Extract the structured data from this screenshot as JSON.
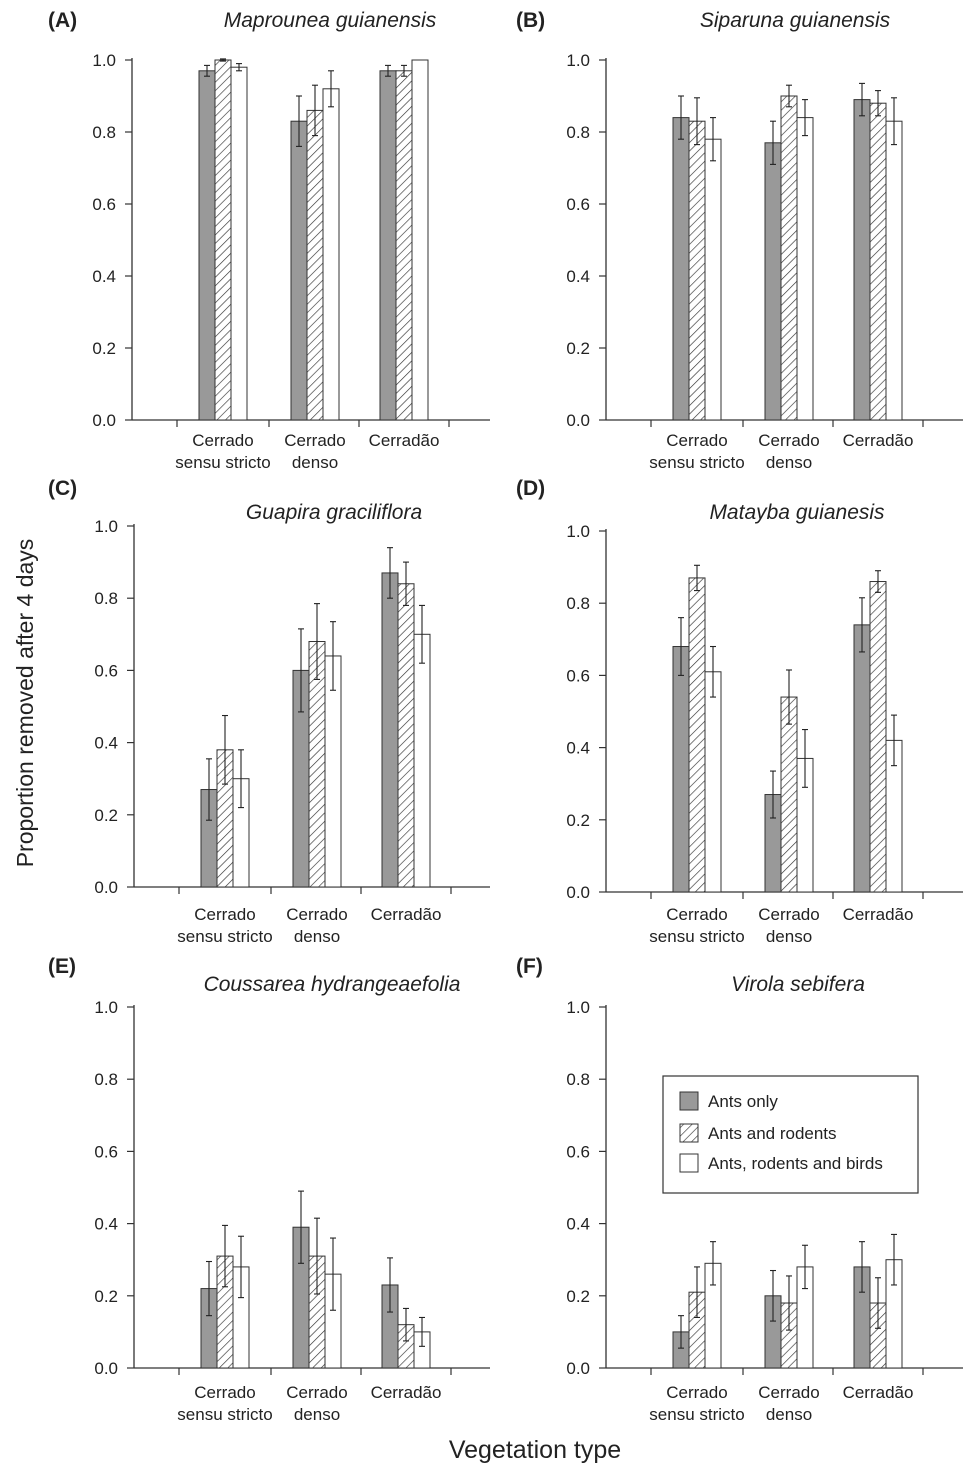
{
  "figure": {
    "y_axis_label": "Proportion removed after 4 days",
    "x_axis_label": "Vegetation type",
    "colors": {
      "ants_only": "#999999",
      "hatched": "#333333",
      "open": "#ffffff",
      "axis": "#333333"
    }
  },
  "legend": {
    "entries": [
      {
        "label": "Ants only",
        "style": "solid-gray"
      },
      {
        "label": "Ants and rodents",
        "style": "hatched"
      },
      {
        "label": "Ants, rodents and birds",
        "style": "white"
      }
    ]
  },
  "chart_data": [
    {
      "type": "bar",
      "panel": "(A)",
      "title": "Maprounea guianensis",
      "categories": [
        [
          "Cerrado",
          "sensu stricto"
        ],
        [
          "Cerrado",
          "denso"
        ],
        [
          "Cerradão"
        ]
      ],
      "yticks": [
        "0.0",
        "0.2",
        "0.4",
        "0.6",
        "0.8",
        "1.0"
      ],
      "ylim": [
        0,
        1.0
      ],
      "series": [
        {
          "name": "Ants only",
          "values": [
            0.97,
            0.83,
            0.97
          ],
          "errors": [
            0.015,
            0.07,
            0.015
          ]
        },
        {
          "name": "Ants and rodents",
          "values": [
            1.0,
            0.86,
            0.97
          ],
          "errors": [
            0.003,
            0.07,
            0.015
          ]
        },
        {
          "name": "Ants, rodents and birds",
          "values": [
            0.98,
            0.92,
            1.0
          ],
          "errors": [
            0.01,
            0.05,
            0.0
          ]
        }
      ]
    },
    {
      "type": "bar",
      "panel": "(B)",
      "title": "Siparuna guianensis",
      "categories": [
        [
          "Cerrado",
          "sensu stricto"
        ],
        [
          "Cerrado",
          "denso"
        ],
        [
          "Cerradão"
        ]
      ],
      "yticks": [
        "0.0",
        "0.2",
        "0.4",
        "0.6",
        "0.8",
        "1.0"
      ],
      "ylim": [
        0,
        1.0
      ],
      "series": [
        {
          "name": "Ants only",
          "values": [
            0.84,
            0.77,
            0.89
          ],
          "errors": [
            0.06,
            0.06,
            0.045
          ]
        },
        {
          "name": "Ants and rodents",
          "values": [
            0.83,
            0.9,
            0.88
          ],
          "errors": [
            0.065,
            0.03,
            0.035
          ]
        },
        {
          "name": "Ants, rodents and birds",
          "values": [
            0.78,
            0.84,
            0.83
          ],
          "errors": [
            0.06,
            0.05,
            0.065
          ]
        }
      ]
    },
    {
      "type": "bar",
      "panel": "(C)",
      "title": "Guapira graciliflora",
      "categories": [
        [
          "Cerrado",
          "sensu stricto"
        ],
        [
          "Cerrado",
          "denso"
        ],
        [
          "Cerradão"
        ]
      ],
      "yticks": [
        "0.0",
        "0.2",
        "0.4",
        "0.6",
        "0.8",
        "1.0"
      ],
      "ylim": [
        0,
        1.0
      ],
      "series": [
        {
          "name": "Ants only",
          "values": [
            0.27,
            0.6,
            0.87
          ],
          "errors": [
            0.085,
            0.115,
            0.07
          ]
        },
        {
          "name": "Ants and rodents",
          "values": [
            0.38,
            0.68,
            0.84
          ],
          "errors": [
            0.095,
            0.105,
            0.06
          ]
        },
        {
          "name": "Ants, rodents and birds",
          "values": [
            0.3,
            0.64,
            0.7
          ],
          "errors": [
            0.08,
            0.095,
            0.08
          ]
        }
      ]
    },
    {
      "type": "bar",
      "panel": "(D)",
      "title": "Matayba guianesis",
      "categories": [
        [
          "Cerrado",
          "sensu stricto"
        ],
        [
          "Cerrado",
          "denso"
        ],
        [
          "Cerradão"
        ]
      ],
      "yticks": [
        "0.0",
        "0.2",
        "0.4",
        "0.6",
        "0.8",
        "1.0"
      ],
      "ylim": [
        0,
        1.0
      ],
      "series": [
        {
          "name": "Ants only",
          "values": [
            0.68,
            0.27,
            0.74
          ],
          "errors": [
            0.08,
            0.065,
            0.075
          ]
        },
        {
          "name": "Ants and rodents",
          "values": [
            0.87,
            0.54,
            0.86
          ],
          "errors": [
            0.035,
            0.075,
            0.03
          ]
        },
        {
          "name": "Ants, rodents and birds",
          "values": [
            0.61,
            0.37,
            0.42
          ],
          "errors": [
            0.07,
            0.08,
            0.07
          ]
        }
      ]
    },
    {
      "type": "bar",
      "panel": "(E)",
      "title": "Coussarea hydrangeaefolia",
      "categories": [
        [
          "Cerrado",
          "sensu stricto"
        ],
        [
          "Cerrado",
          "denso"
        ],
        [
          "Cerradão"
        ]
      ],
      "yticks": [
        "0.0",
        "0.2",
        "0.4",
        "0.6",
        "0.8",
        "1.0"
      ],
      "ylim": [
        0,
        1.0
      ],
      "series": [
        {
          "name": "Ants only",
          "values": [
            0.22,
            0.39,
            0.23
          ],
          "errors": [
            0.075,
            0.1,
            0.075
          ]
        },
        {
          "name": "Ants and rodents",
          "values": [
            0.31,
            0.31,
            0.12
          ],
          "errors": [
            0.085,
            0.105,
            0.045
          ]
        },
        {
          "name": "Ants, rodents and birds",
          "values": [
            0.28,
            0.26,
            0.1
          ],
          "errors": [
            0.085,
            0.1,
            0.04
          ]
        }
      ]
    },
    {
      "type": "bar",
      "panel": "(F)",
      "title": "Virola sebifera",
      "categories": [
        [
          "Cerrado",
          "sensu stricto"
        ],
        [
          "Cerrado",
          "denso"
        ],
        [
          "Cerradão"
        ]
      ],
      "yticks": [
        "0.0",
        "0.2",
        "0.4",
        "0.6",
        "0.8",
        "1.0"
      ],
      "ylim": [
        0,
        1.0
      ],
      "series": [
        {
          "name": "Ants only",
          "values": [
            0.1,
            0.2,
            0.28
          ],
          "errors": [
            0.045,
            0.07,
            0.07
          ]
        },
        {
          "name": "Ants and rodents",
          "values": [
            0.21,
            0.18,
            0.18
          ],
          "errors": [
            0.07,
            0.075,
            0.07
          ]
        },
        {
          "name": "Ants, rodents and birds",
          "values": [
            0.29,
            0.28,
            0.3
          ],
          "errors": [
            0.06,
            0.06,
            0.07
          ]
        }
      ],
      "legend": "inside, upper right"
    }
  ]
}
